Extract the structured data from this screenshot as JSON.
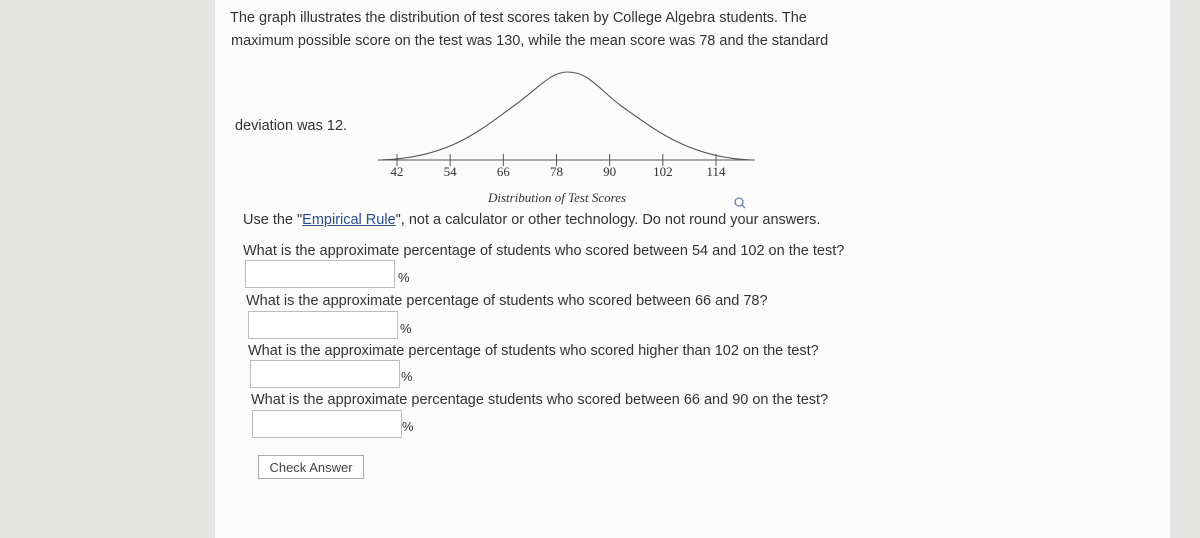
{
  "intro": [
    "The graph illustrates the distribution of test scores taken by College Algebra students. The",
    "maximum possible score on the test was 130, while the mean score was 78 and the standard",
    "deviation was 12."
  ],
  "graph": {
    "ticks": [
      42,
      54,
      66,
      78,
      90,
      102,
      114
    ],
    "caption": "Distribution of Test Scores"
  },
  "instruction": {
    "prefix": "Use the \"",
    "link": "Empirical Rule",
    "suffix": "\", not a calculator or other technology. Do not round your answers."
  },
  "questions": [
    {
      "text": "What is the approximate percentage of students who scored between 54 and 102 on the test?",
      "unit": "%"
    },
    {
      "text": "What is the approximate percentage of students who scored between 66 and 78?",
      "unit": "%"
    },
    {
      "text": "What is the approximate percentage of students who scored higher than 102 on the test?",
      "unit": "%"
    },
    {
      "text": "What is the approximate percentage students who scored between 66 and 90 on the test?",
      "unit": "%"
    }
  ],
  "button": "Check Answer"
}
